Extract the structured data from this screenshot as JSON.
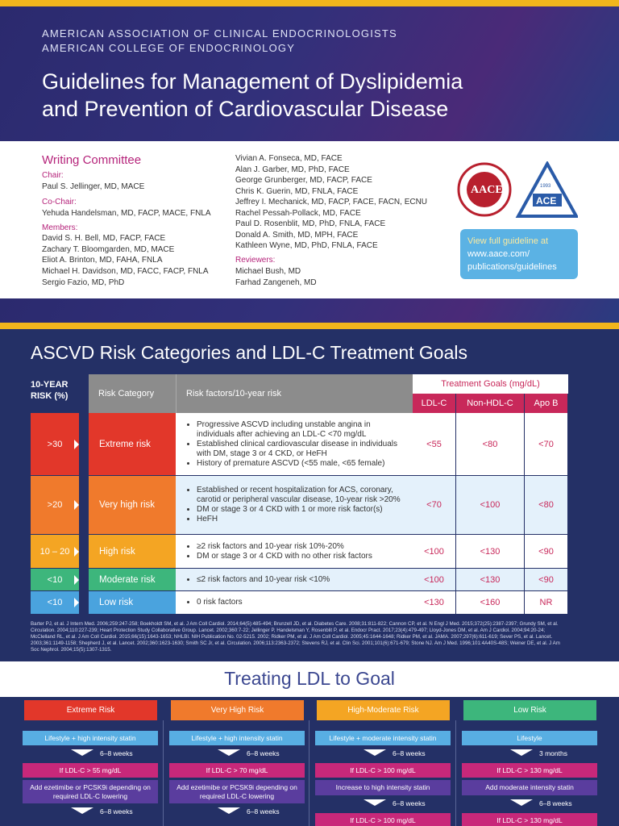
{
  "header": {
    "org_lines": [
      "AMERICAN ASSOCIATION OF CLINICAL ENDOCRINOLOGISTS",
      "AMERICAN COLLEGE OF ENDOCRINOLOGY"
    ],
    "title_lines": [
      "Guidelines for Management of Dyslipidemia",
      "and Prevention of Cardiovascular Disease"
    ]
  },
  "committee": {
    "heading": "Writing Committee",
    "chair_label": "Chair:",
    "chair": "Paul S. Jellinger, MD, MACE",
    "cochair_label": "Co-Chair:",
    "cochair": "Yehuda Handelsman, MD, FACP, MACE, FNLA",
    "members_label": "Members:",
    "members_col1": [
      "David S. H. Bell, MD, FACP, FACE",
      "Zachary T. Bloomgarden, MD, MACE",
      "Eliot A. Brinton, MD, FAHA, FNLA",
      "Michael H. Davidson, MD, FACC, FACP, FNLA",
      "Sergio Fazio, MD, PhD"
    ],
    "members_col2": [
      "Vivian A. Fonseca, MD, FACE",
      "Alan J. Garber, MD, PhD, FACE",
      "George Grunberger, MD, FACP, FACE",
      "Chris K. Guerin, MD, FNLA, FACE",
      "Jeffrey I. Mechanick, MD, FACP, FACE, FACN, ECNU",
      "Rachel Pessah-Pollack, MD, FACE",
      "Paul D. Rosenblit, MD, PhD, FNLA, FACE",
      "Donald A. Smith, MD, MPH, FACE",
      "Kathleen Wyne, MD, PhD, FNLA, FACE"
    ],
    "reviewers_label": "Reviewers:",
    "reviewers": [
      "Michael Bush, MD",
      "Farhad Zangeneh, MD"
    ]
  },
  "logos": {
    "aace": "AACE",
    "ace": "ACE",
    "year": "1993"
  },
  "callout": [
    "View full guideline at",
    "www.aace.com/",
    "publications/guidelines"
  ],
  "risk_table": {
    "title": "ASCVD Risk Categories and LDL-C Treatment Goals",
    "risk_header": "10-YEAR RISK (%)",
    "category_header": "Risk Category",
    "factors_header": "Risk factors/10-year risk",
    "goals_header": "Treatment Goals (mg/dL)",
    "goal_columns": [
      "LDL-C",
      "Non-HDL-C",
      "Apo B"
    ],
    "rows": [
      {
        "risk": ">30",
        "category": "Extreme risk",
        "color": "#e2372a",
        "factors": [
          "Progressive ASCVD including unstable angina in individuals after achieving an LDL-C <70 mg/dL",
          "Established clinical cardiovascular disease in individuals with DM, stage 3 or 4 CKD, or HeFH",
          "History of premature ASCVD (<55 male, <65 female)"
        ],
        "goals": [
          "<55",
          "<80",
          "<70"
        ]
      },
      {
        "risk": ">20",
        "category": "Very high risk",
        "color": "#f07a2c",
        "factors": [
          "Established or recent hospitalization for ACS, coronary, carotid or peripheral vascular disease, 10-year risk >20%",
          "DM or stage 3 or 4 CKD with 1 or more risk factor(s)",
          "HeFH"
        ],
        "goals": [
          "<70",
          "<100",
          "<80"
        ]
      },
      {
        "risk": "10 – 20",
        "category": "High risk",
        "color": "#f4a523",
        "factors": [
          "≥2 risk factors and 10-year risk 10%-20%",
          "DM or stage 3 or 4 CKD with no other risk factors"
        ],
        "goals": [
          "<100",
          "<130",
          "<90"
        ]
      },
      {
        "risk": "<10",
        "category": "Moderate risk",
        "color": "#3db67c",
        "factors": [
          "≤2 risk factors and 10-year risk <10%"
        ],
        "goals": [
          "<100",
          "<130",
          "<90"
        ]
      },
      {
        "risk": "<10",
        "category": "Low risk",
        "color": "#4aa3de",
        "factors": [
          "0 risk factors"
        ],
        "goals": [
          "<130",
          "<160",
          "NR"
        ]
      }
    ],
    "references": "Barter PJ, et al. J Intern Med. 2006;259:247-258; Boekholdt SM, et al. J Am Coll Cardiol. 2014;64(5):485-494; Brunzell JD, et al. Diabetes Care. 2008;31:811-822; Cannon CP, et al. N Engl J Med. 2015;372(25):2387-2397; Grundy SM, et al. Circulation. 2004;110:227-239; Heart Protection Study Collaborative Group. Lancet. 2002;360:7-22; Jellinger P, Handelsman Y, Rosenblit P, et al. Endocr Pract. 2017;23(4):479-497; Lloyd-Jones DM, et al. Am J Cardiol. 2004;94:20-24; McClelland RL, et al. J Am Coll Cardiol. 2015;66(15):1643-1653; NHLBI. NIH Publication No. 02-5215. 2002; Ridker PM, et al. J Am Coll Cardiol. 2005;45:1644-1648; Ridker PM, et al. JAMA. 2007;297(6):611-619; Sever PS, et al. Lancet. 2003;361:1149-1158; Shepherd J, et al. Lancet. 2002;360:1623-1630; Smith SC Jr, et al. Circulation. 2006;113:2363-2372; Stevens RJ, et al. Clin Sci. 2001;101(6):671-679; Stone NJ. Am J Med. 1996;101:4A40S-48S; Weiner DE, et al. J Am Soc Nephrol. 2004;15(5):1307-1315."
  },
  "treating": {
    "title": "Treating LDL to Goal",
    "columns": [
      {
        "name": "Extreme Risk",
        "color": "#e2372a",
        "steps": [
          "Lifestyle + high intensity statin",
          "6–8 weeks",
          "If LDL-C > 55 mg/dL",
          "Add ezetimibe or PCSK9i depending on required LDL-C lowering",
          "6–8 weeks"
        ]
      },
      {
        "name": "Very High Risk",
        "color": "#f07a2c",
        "steps": [
          "Lifestyle + high intensity statin",
          "6–8 weeks",
          "If LDL-C > 70 mg/dL",
          "Add ezetimibe or PCSK9i depending on required LDL-C lowering",
          "6–8 weeks"
        ]
      },
      {
        "name": "High-Moderate Risk",
        "color": "#f4a523",
        "steps": [
          "Lifestyle + moderate intensity statin",
          "6–8 weeks",
          "If LDL-C > 100 mg/dL",
          "Increase to high intensity statin",
          "6–8 weeks",
          "If LDL-C > 100 mg/dL"
        ]
      },
      {
        "name": "Low Risk",
        "color": "#3db67c",
        "steps": [
          "Lifestyle",
          "3 months",
          "If LDL-C > 130 mg/dL",
          "Add moderate intensity statin",
          "6–8 weeks",
          "If LDL-C > 130 mg/dL"
        ]
      }
    ]
  }
}
